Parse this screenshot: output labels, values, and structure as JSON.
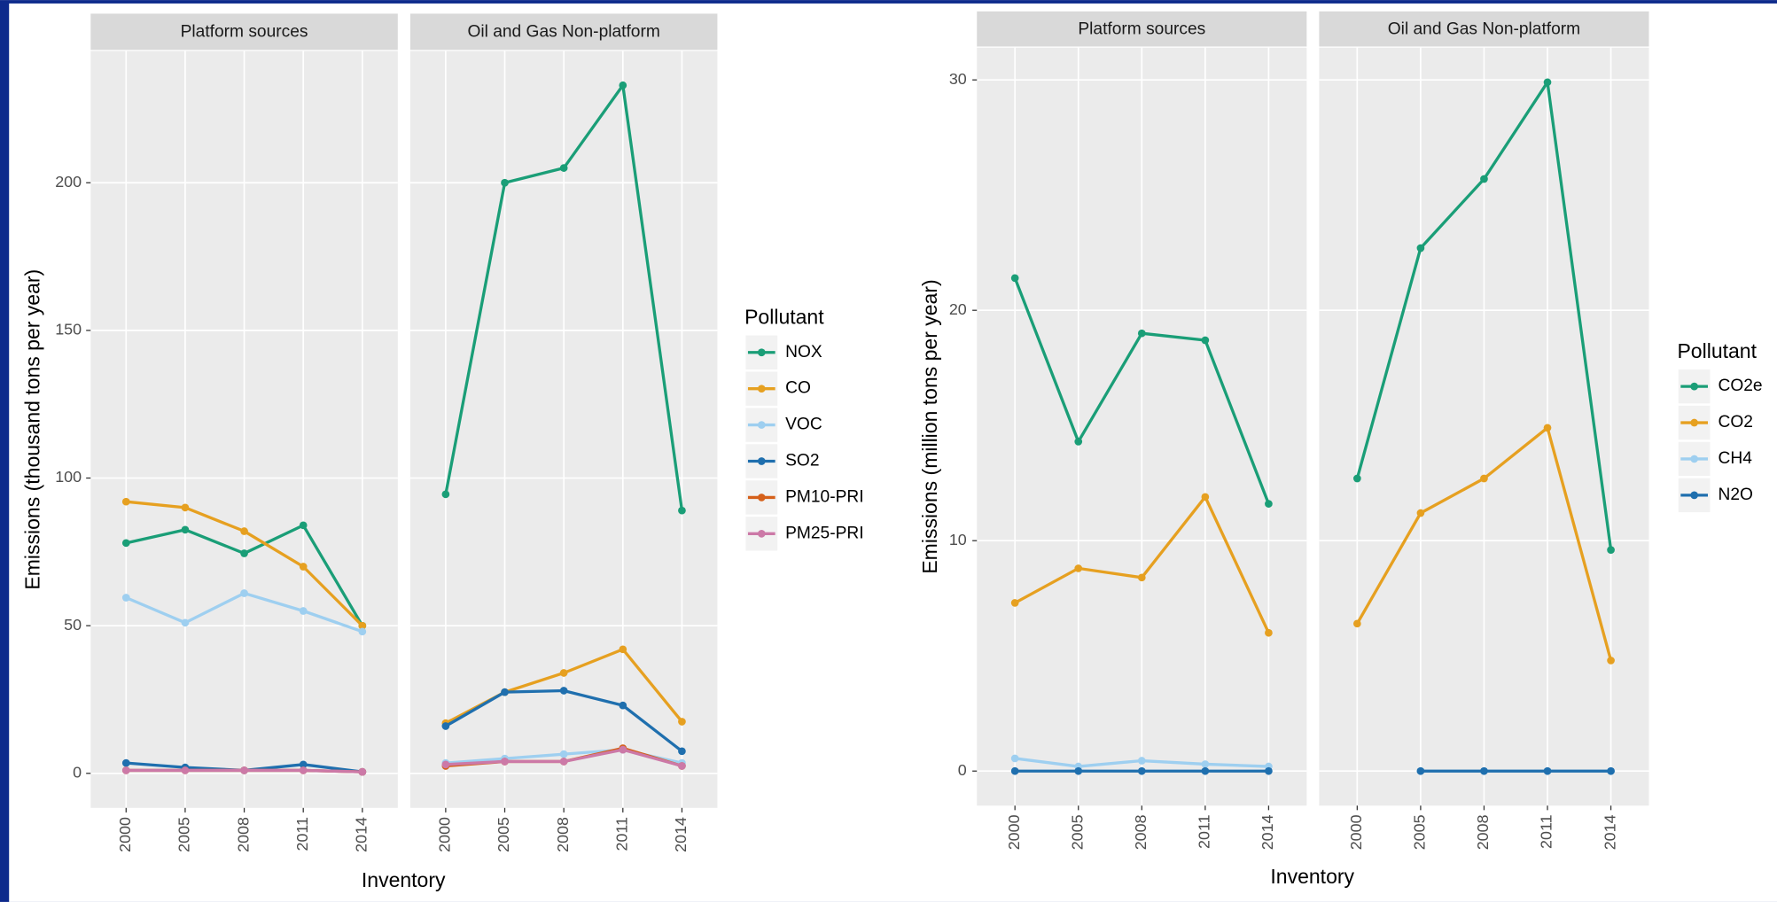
{
  "chart_data": [
    {
      "type": "line",
      "facets": [
        "Platform sources",
        "Oil and Gas Non-platform"
      ],
      "x_label": "Inventory",
      "y_label": "Emissions (thousand tons per year)",
      "legend_title": "Pollutant",
      "categories": [
        "2000",
        "2005",
        "2008",
        "2011",
        "2014"
      ],
      "ylim": [
        -11.7,
        244.6
      ],
      "yticks": [
        0,
        50,
        100,
        150,
        200
      ],
      "grid": true,
      "series": [
        {
          "name": "NOX",
          "color": "#1a9e77",
          "values": [
            [
              78,
              82.5,
              74.5,
              84,
              50
            ],
            [
              94.5,
              200,
              205,
              233,
              89
            ]
          ]
        },
        {
          "name": "CO",
          "color": "#e6a020",
          "values": [
            [
              92,
              90,
              82,
              70,
              50
            ],
            [
              17,
              27.5,
              34,
              42,
              17.5
            ]
          ]
        },
        {
          "name": "VOC",
          "color": "#9ecff0",
          "values": [
            [
              59.5,
              51,
              61,
              55,
              48
            ],
            [
              3.5,
              5,
              6.5,
              8,
              3.5
            ]
          ]
        },
        {
          "name": "SO2",
          "color": "#1f6fae",
          "values": [
            [
              3.5,
              2,
              1,
              3,
              0.5
            ],
            [
              16,
              27.5,
              28,
              23,
              7.5
            ]
          ]
        },
        {
          "name": "PM10-PRI",
          "color": "#d5601a",
          "values": [
            [
              1,
              1,
              1,
              1,
              0.5
            ],
            [
              2.5,
              4,
              4,
              8.5,
              2.5
            ]
          ]
        },
        {
          "name": "PM25-PRI",
          "color": "#cc79a7",
          "values": [
            [
              1,
              1,
              1,
              1,
              0.5
            ],
            [
              3,
              4,
              4,
              8,
              2.5
            ]
          ]
        }
      ]
    },
    {
      "type": "line",
      "facets": [
        "Platform sources",
        "Oil and Gas Non-platform"
      ],
      "x_label": "Inventory",
      "y_label": "Emissions (million tons per year)",
      "legend_title": "Pollutant",
      "categories": [
        "2000",
        "2005",
        "2008",
        "2011",
        "2014"
      ],
      "ylim": [
        -1.5,
        31.4
      ],
      "yticks": [
        0,
        10,
        20,
        30
      ],
      "grid": true,
      "series": [
        {
          "name": "CO2e",
          "color": "#1a9e77",
          "values": [
            [
              21.4,
              14.3,
              19,
              18.7,
              11.6
            ],
            [
              12.7,
              22.7,
              25.7,
              29.9,
              9.6
            ]
          ]
        },
        {
          "name": "CO2",
          "color": "#e6a020",
          "values": [
            [
              7.3,
              8.8,
              8.4,
              11.9,
              6
            ],
            [
              6.4,
              11.2,
              12.7,
              14.9,
              4.8
            ]
          ]
        },
        {
          "name": "CH4",
          "color": "#9ecff0",
          "values": [
            [
              0.55,
              0.2,
              0.45,
              0.3,
              0.2
            ],
            [
              null,
              0,
              0,
              0,
              0
            ]
          ]
        },
        {
          "name": "N2O",
          "color": "#1f6fae",
          "values": [
            [
              0,
              0,
              0,
              0,
              0
            ],
            [
              null,
              0,
              0,
              0,
              0
            ]
          ]
        }
      ]
    }
  ]
}
